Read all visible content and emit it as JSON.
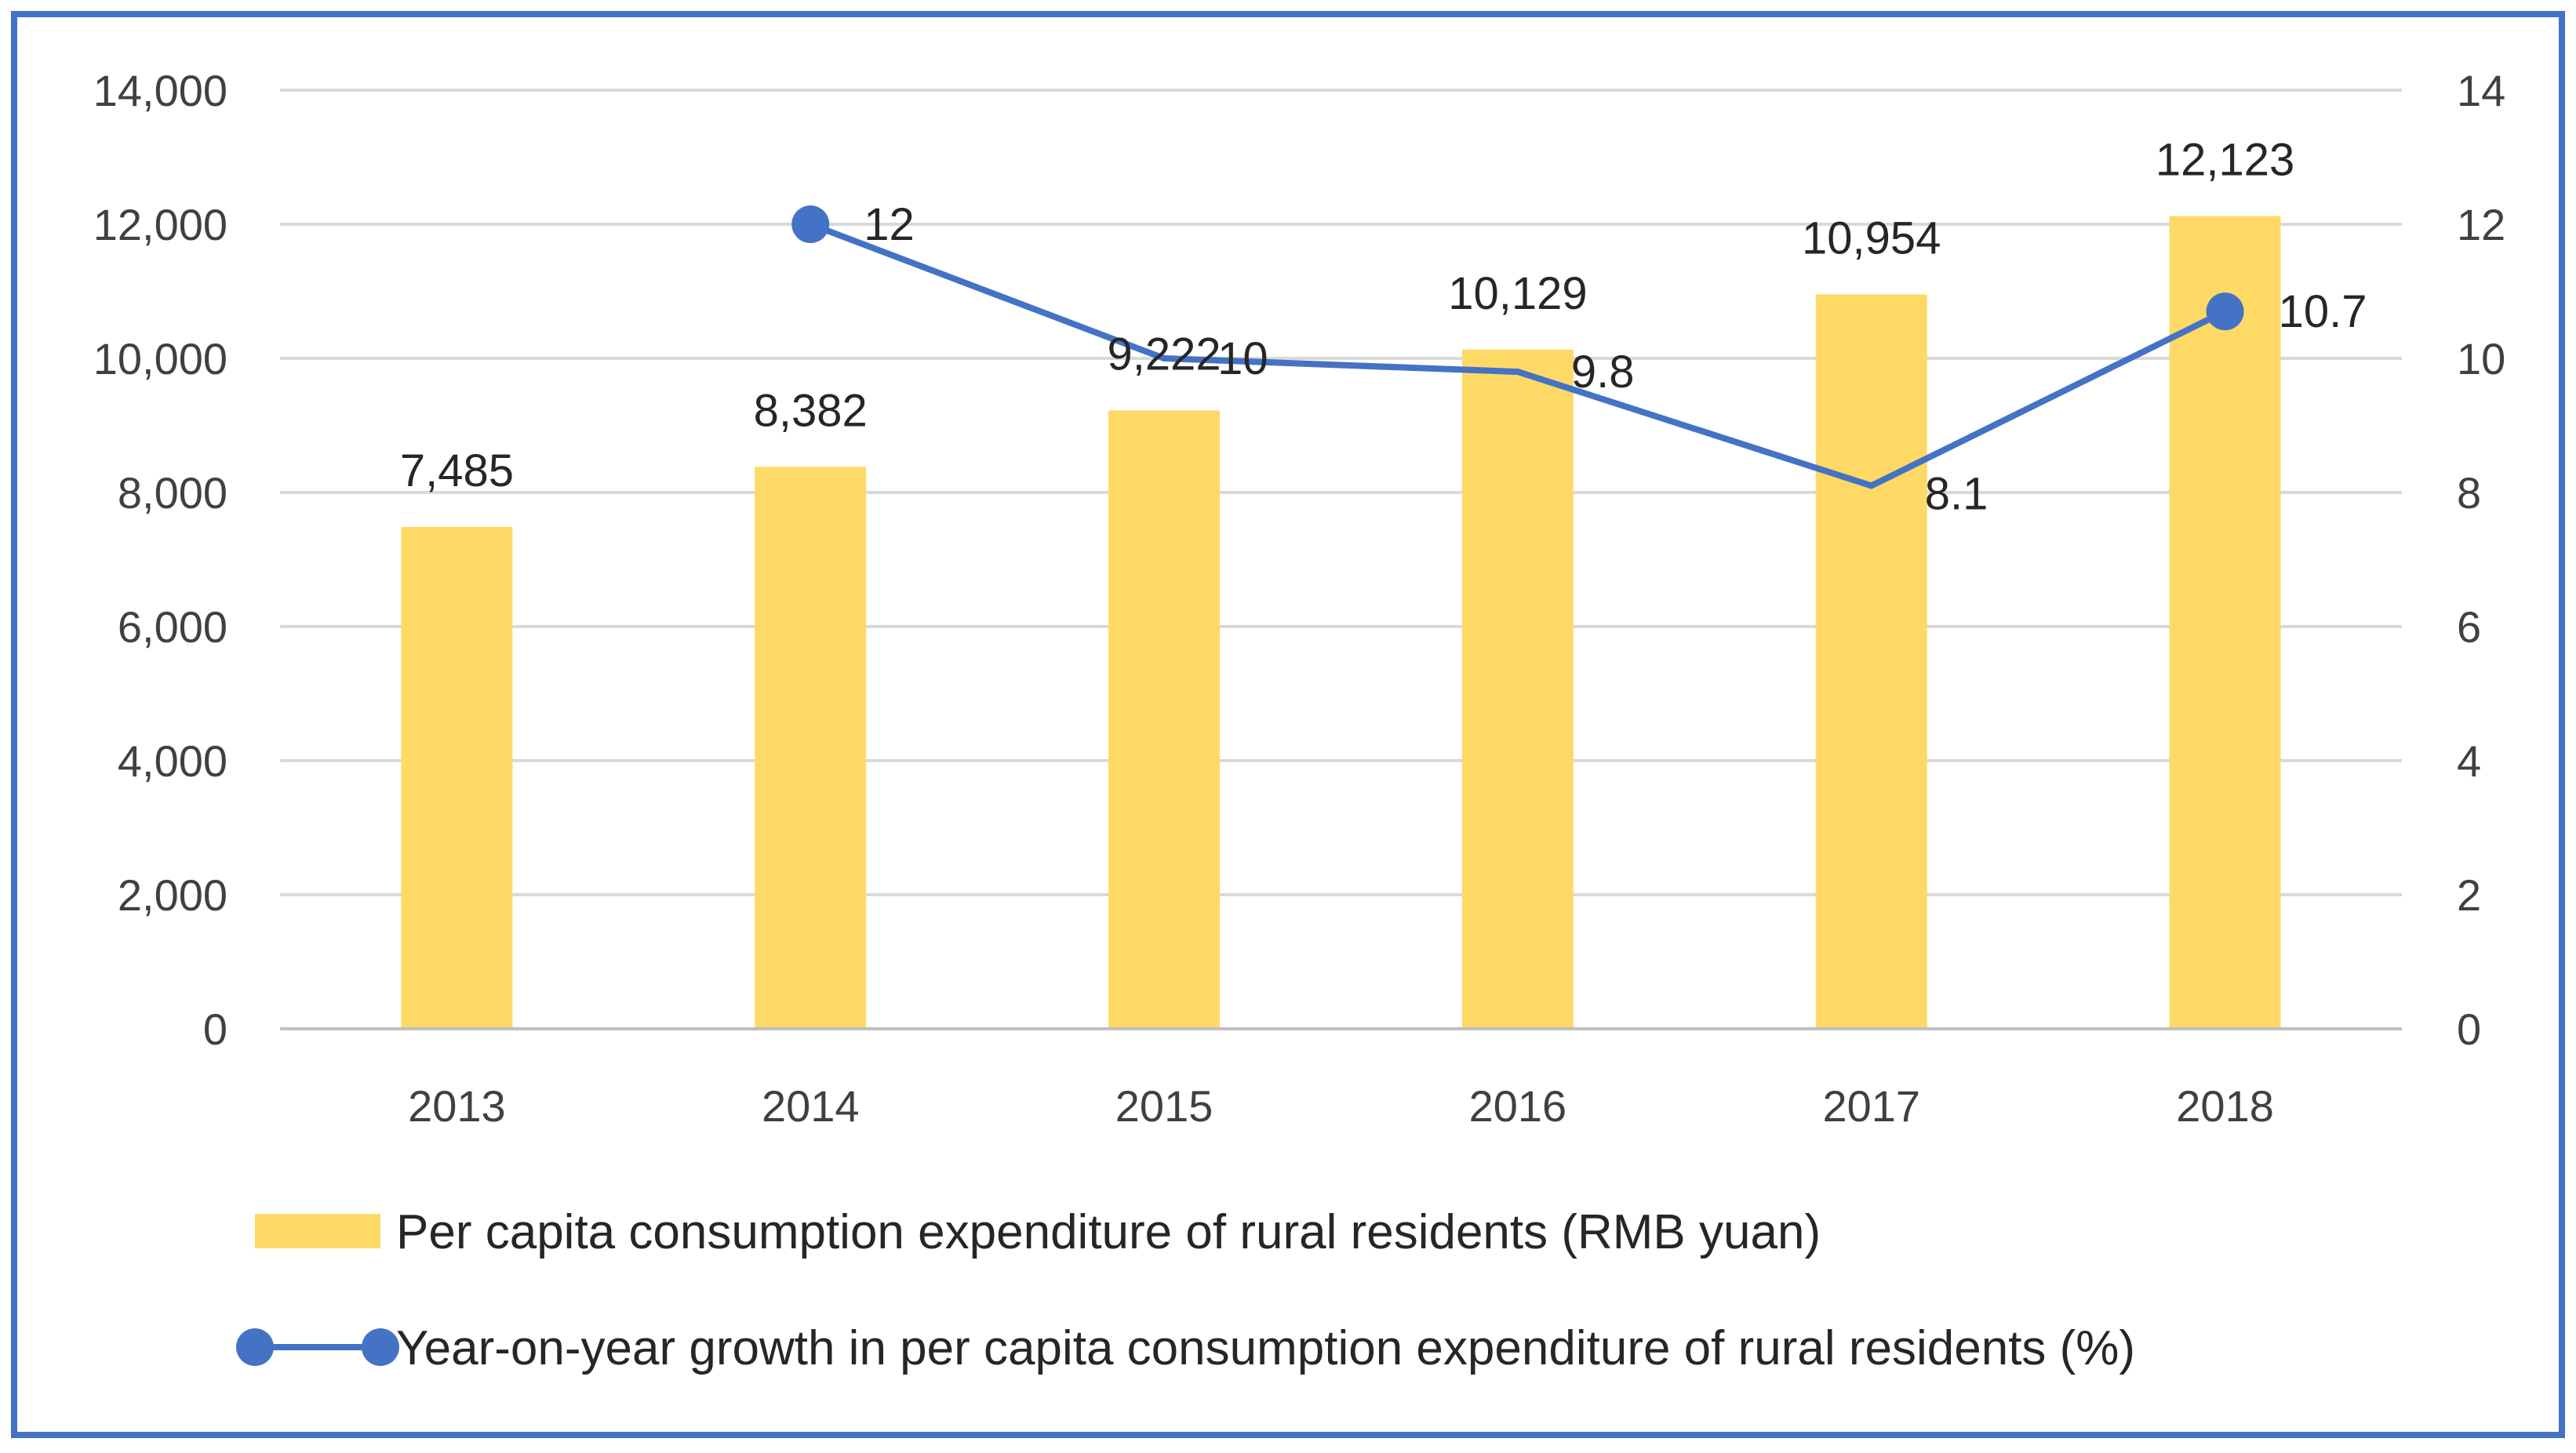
{
  "chart_data": {
    "type": "bar+line",
    "categories": [
      "2013",
      "2014",
      "2015",
      "2016",
      "2017",
      "2018"
    ],
    "series": [
      {
        "name": "Per capita consumption expenditure of rural residents (RMB yuan)",
        "type": "bar",
        "axis": "left",
        "values": [
          7485,
          8382,
          9222,
          10129,
          10954,
          12123
        ],
        "labels": [
          "7,485",
          "8,382",
          "9,222",
          "10,129",
          "10,954",
          "12,123"
        ],
        "color": "#FFD966"
      },
      {
        "name": "Year-on-year growth in per capita consumption expenditure of rural residents (%)",
        "type": "line",
        "axis": "right",
        "values": [
          null,
          12,
          10,
          9.8,
          8.1,
          10.7
        ],
        "labels": [
          "",
          "12",
          "10",
          "9.8",
          "8.1",
          "10.7"
        ],
        "color": "#4472C4"
      }
    ],
    "y_left": {
      "ylim": [
        0,
        14000
      ],
      "ticks": [
        0,
        2000,
        4000,
        6000,
        8000,
        10000,
        12000,
        14000
      ],
      "tick_labels": [
        "0",
        "2,000",
        "4,000",
        "6,000",
        "8,000",
        "10,000",
        "12,000",
        "14,000"
      ]
    },
    "y_right": {
      "ylim": [
        0,
        14
      ],
      "ticks": [
        0,
        2,
        4,
        6,
        8,
        10,
        12,
        14
      ],
      "tick_labels": [
        "0",
        "2",
        "4",
        "6",
        "8",
        "10",
        "12",
        "14"
      ]
    },
    "grid": true,
    "legend": "bottom",
    "frame_color": "#4472C4"
  }
}
